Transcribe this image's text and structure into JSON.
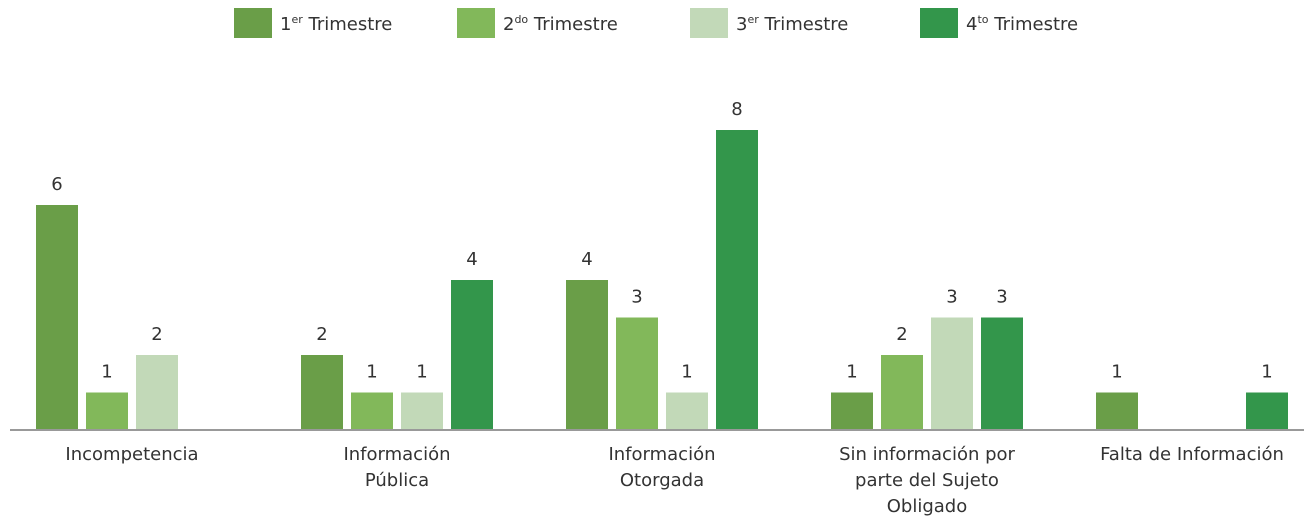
{
  "chart_data": {
    "type": "bar",
    "categories": [
      "Incompetencia",
      "Información Pública",
      "Información Otorgada",
      "Sin información por parte del Sujeto Obligado",
      "Falta de Información"
    ],
    "series": [
      {
        "name": "1er Trimestre",
        "color": "#6a9e48",
        "values": [
          6,
          2,
          4,
          1,
          1
        ]
      },
      {
        "name": "2do Trimestre",
        "color": "#82b85a",
        "values": [
          1,
          1,
          3,
          2,
          null
        ]
      },
      {
        "name": "3er Trimestre",
        "color": "#c2d9b8",
        "values": [
          2,
          1,
          1,
          3,
          null
        ]
      },
      {
        "name": "4to Trimestre",
        "color": "#33964b",
        "values": [
          null,
          4,
          8,
          3,
          1
        ]
      }
    ],
    "ylim": [
      0,
      8
    ],
    "legend": "top"
  }
}
